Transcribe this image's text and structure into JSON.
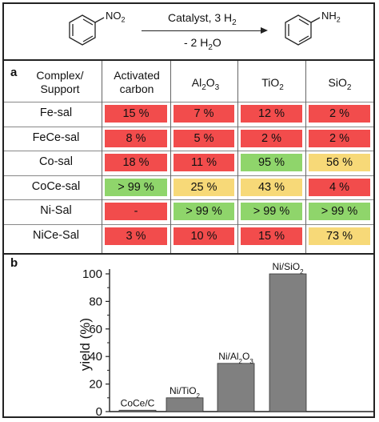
{
  "scheme": {
    "reactant_group": "NO",
    "reactant_sub": "2",
    "product_group": "NH",
    "product_sub": "2",
    "condition_top": "Catalyst, 3 H",
    "condition_top_sub": "2",
    "condition_bottom_pre": "- 2 H",
    "condition_bottom_sub": "2",
    "condition_bottom_post": "O"
  },
  "table": {
    "panel_label": "a",
    "corner_line1": "Complex/",
    "corner_line2": "Support",
    "col1_line1": "Activated",
    "col1_line2": "carbon",
    "col2": "Al",
    "col2_sub1": "2",
    "col2_mid": "O",
    "col2_sub2": "3",
    "col3": "TiO",
    "col3_sub": "2",
    "col4": "SiO",
    "col4_sub": "2",
    "rows": [
      {
        "name": "Fe-sal",
        "cells": [
          {
            "text": "15 %",
            "color": "red"
          },
          {
            "text": "7 %",
            "color": "red"
          },
          {
            "text": "12 %",
            "color": "red"
          },
          {
            "text": "2 %",
            "color": "red"
          }
        ]
      },
      {
        "name": "FeCe-sal",
        "cells": [
          {
            "text": "8 %",
            "color": "red"
          },
          {
            "text": "5 %",
            "color": "red"
          },
          {
            "text": "2 %",
            "color": "red"
          },
          {
            "text": "2 %",
            "color": "red"
          }
        ]
      },
      {
        "name": "Co-sal",
        "cells": [
          {
            "text": "18 %",
            "color": "red"
          },
          {
            "text": "11 %",
            "color": "red"
          },
          {
            "text": "95 %",
            "color": "green"
          },
          {
            "text": "56 %",
            "color": "yellow"
          }
        ]
      },
      {
        "name": "CoCe-sal",
        "cells": [
          {
            "text": "> 99 %",
            "color": "green"
          },
          {
            "text": "25 %",
            "color": "yellow"
          },
          {
            "text": "43 %",
            "color": "yellow"
          },
          {
            "text": "4 %",
            "color": "red"
          }
        ]
      },
      {
        "name": "Ni-Sal",
        "cells": [
          {
            "text": "-",
            "color": "red"
          },
          {
            "text": "> 99 %",
            "color": "green"
          },
          {
            "text": "> 99 %",
            "color": "green"
          },
          {
            "text": "> 99 %",
            "color": "green"
          }
        ]
      },
      {
        "name": "NiCe-Sal",
        "cells": [
          {
            "text": "3 %",
            "color": "red"
          },
          {
            "text": "10 %",
            "color": "red"
          },
          {
            "text": "15 %",
            "color": "red"
          },
          {
            "text": "73 %",
            "color": "yellow"
          }
        ]
      }
    ],
    "colors": {
      "red": "#f24c4c",
      "green": "#8fd56b",
      "yellow": "#f7d978"
    }
  },
  "chart_data": {
    "panel_label": "b",
    "type": "bar",
    "categories": [
      "CoCe/C",
      "Ni/TiO2",
      "Ni/Al2O3",
      "Ni/SiO2"
    ],
    "values": [
      1,
      10,
      35,
      100
    ],
    "ylabel": "yield (%)",
    "ylim": [
      0,
      100
    ],
    "yticks": [
      0,
      20,
      40,
      60,
      80,
      100
    ],
    "bar_color": "#808080",
    "grid": false,
    "legend": "none"
  }
}
